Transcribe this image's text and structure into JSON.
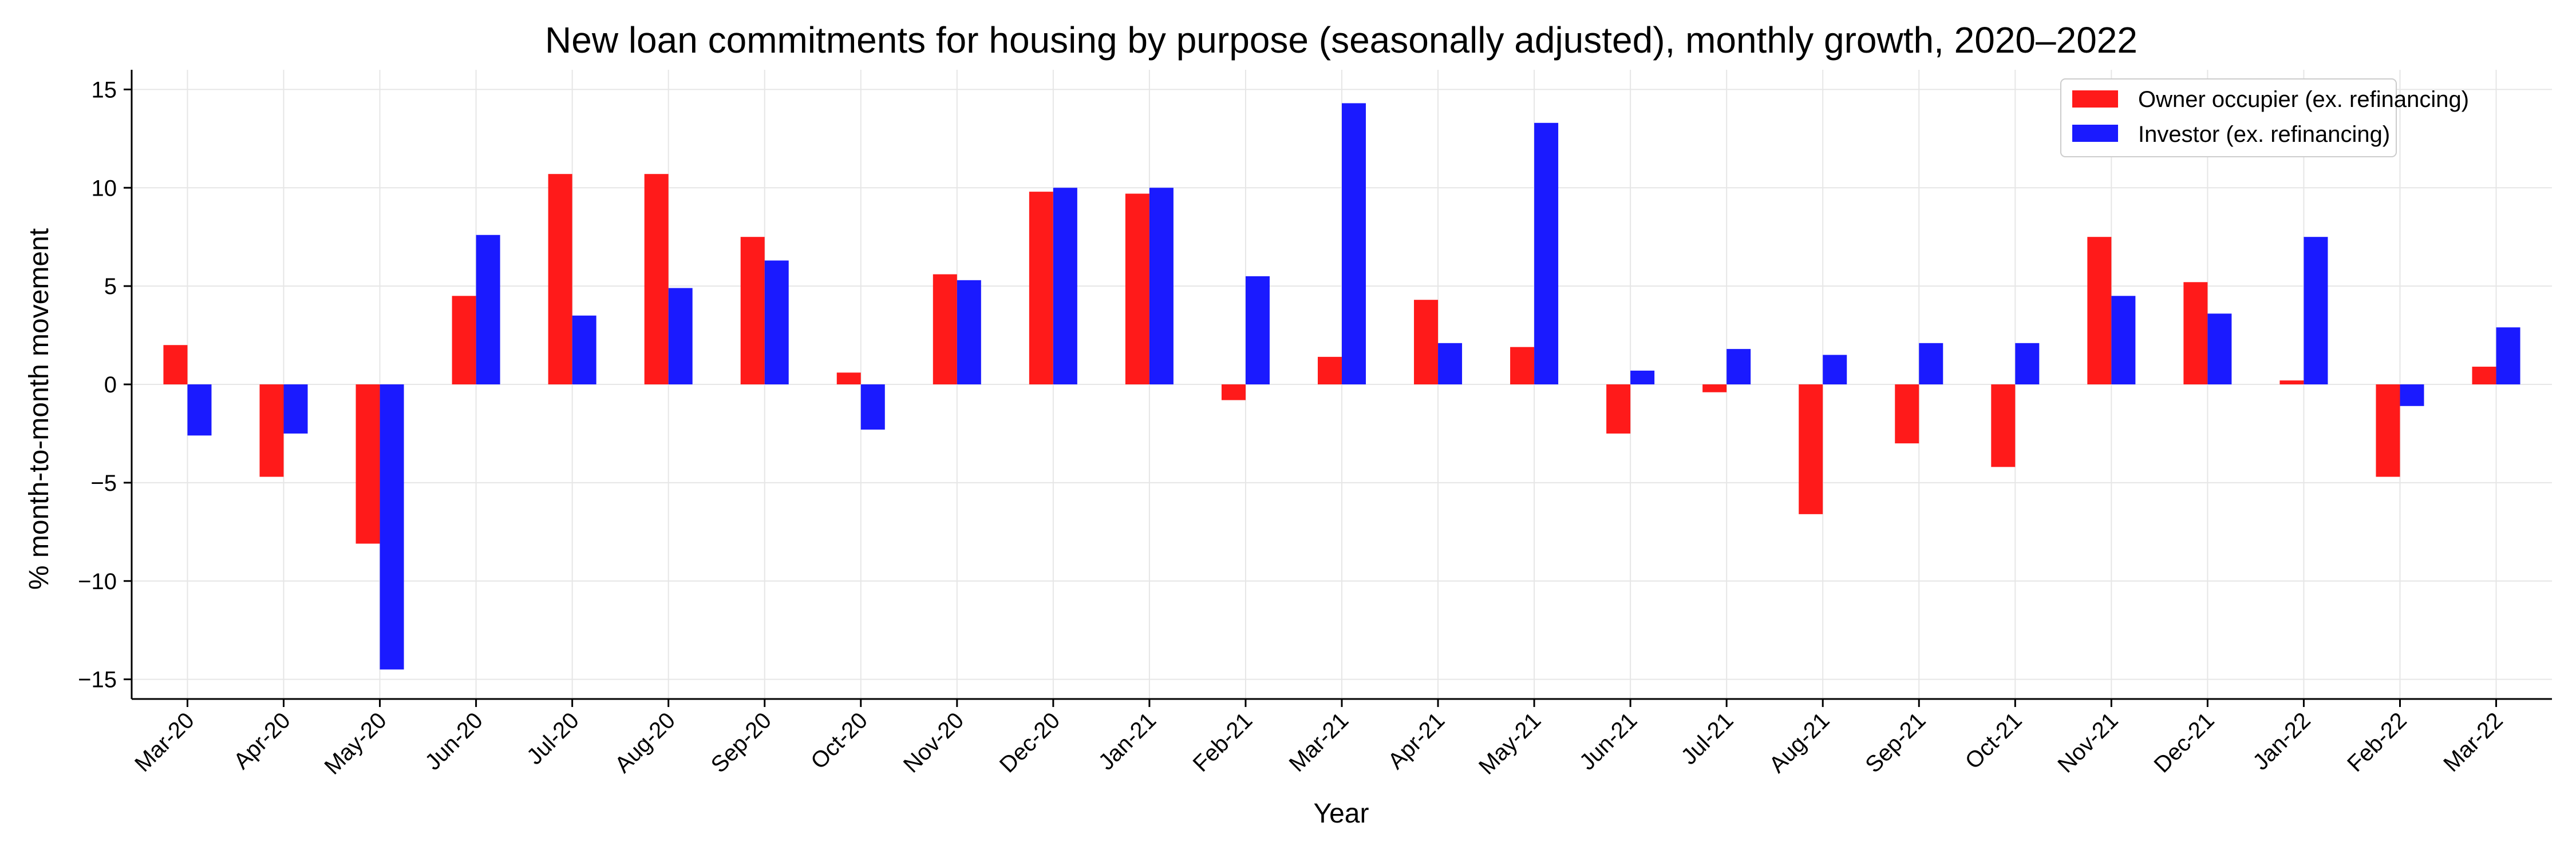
{
  "chart_data": {
    "type": "bar",
    "title": "New loan commitments for housing by purpose (seasonally adjusted), monthly growth, 2020–2022",
    "xlabel": "Year",
    "ylabel": "% month-to-month movement",
    "ylim": [
      -16,
      16
    ],
    "yticks": [
      15,
      10,
      5,
      0,
      -5,
      -10,
      -15
    ],
    "ytick_labels": [
      "15",
      "10",
      "5",
      "0",
      "−5",
      "−10",
      "−15"
    ],
    "grid": true,
    "legend_position": "top-right",
    "categories": [
      "Mar-20",
      "Apr-20",
      "May-20",
      "Jun-20",
      "Jul-20",
      "Aug-20",
      "Sep-20",
      "Oct-20",
      "Nov-20",
      "Dec-20",
      "Jan-21",
      "Feb-21",
      "Mar-21",
      "Apr-21",
      "May-21",
      "Jun-21",
      "Jul-21",
      "Aug-21",
      "Sep-21",
      "Oct-21",
      "Nov-21",
      "Dec-21",
      "Jan-22",
      "Feb-22",
      "Mar-22"
    ],
    "series": [
      {
        "name": "Owner occupier (ex. refinancing)",
        "color": "#ff1a1a",
        "values": [
          2.0,
          -4.7,
          -8.1,
          4.5,
          10.7,
          10.7,
          7.5,
          0.6,
          5.6,
          9.8,
          9.7,
          -0.8,
          1.4,
          4.3,
          1.9,
          -2.5,
          -0.4,
          -6.6,
          -3.0,
          -4.2,
          7.5,
          5.2,
          0.2,
          -4.7,
          0.9
        ]
      },
      {
        "name": "Investor (ex. refinancing)",
        "color": "#1a1aff",
        "values": [
          -2.6,
          -2.5,
          -14.5,
          7.6,
          3.5,
          4.9,
          6.3,
          -2.3,
          5.3,
          10.0,
          10.0,
          5.5,
          14.3,
          2.1,
          13.3,
          0.7,
          1.8,
          1.5,
          2.1,
          2.1,
          4.5,
          3.6,
          7.5,
          -1.1,
          2.9
        ]
      }
    ]
  }
}
